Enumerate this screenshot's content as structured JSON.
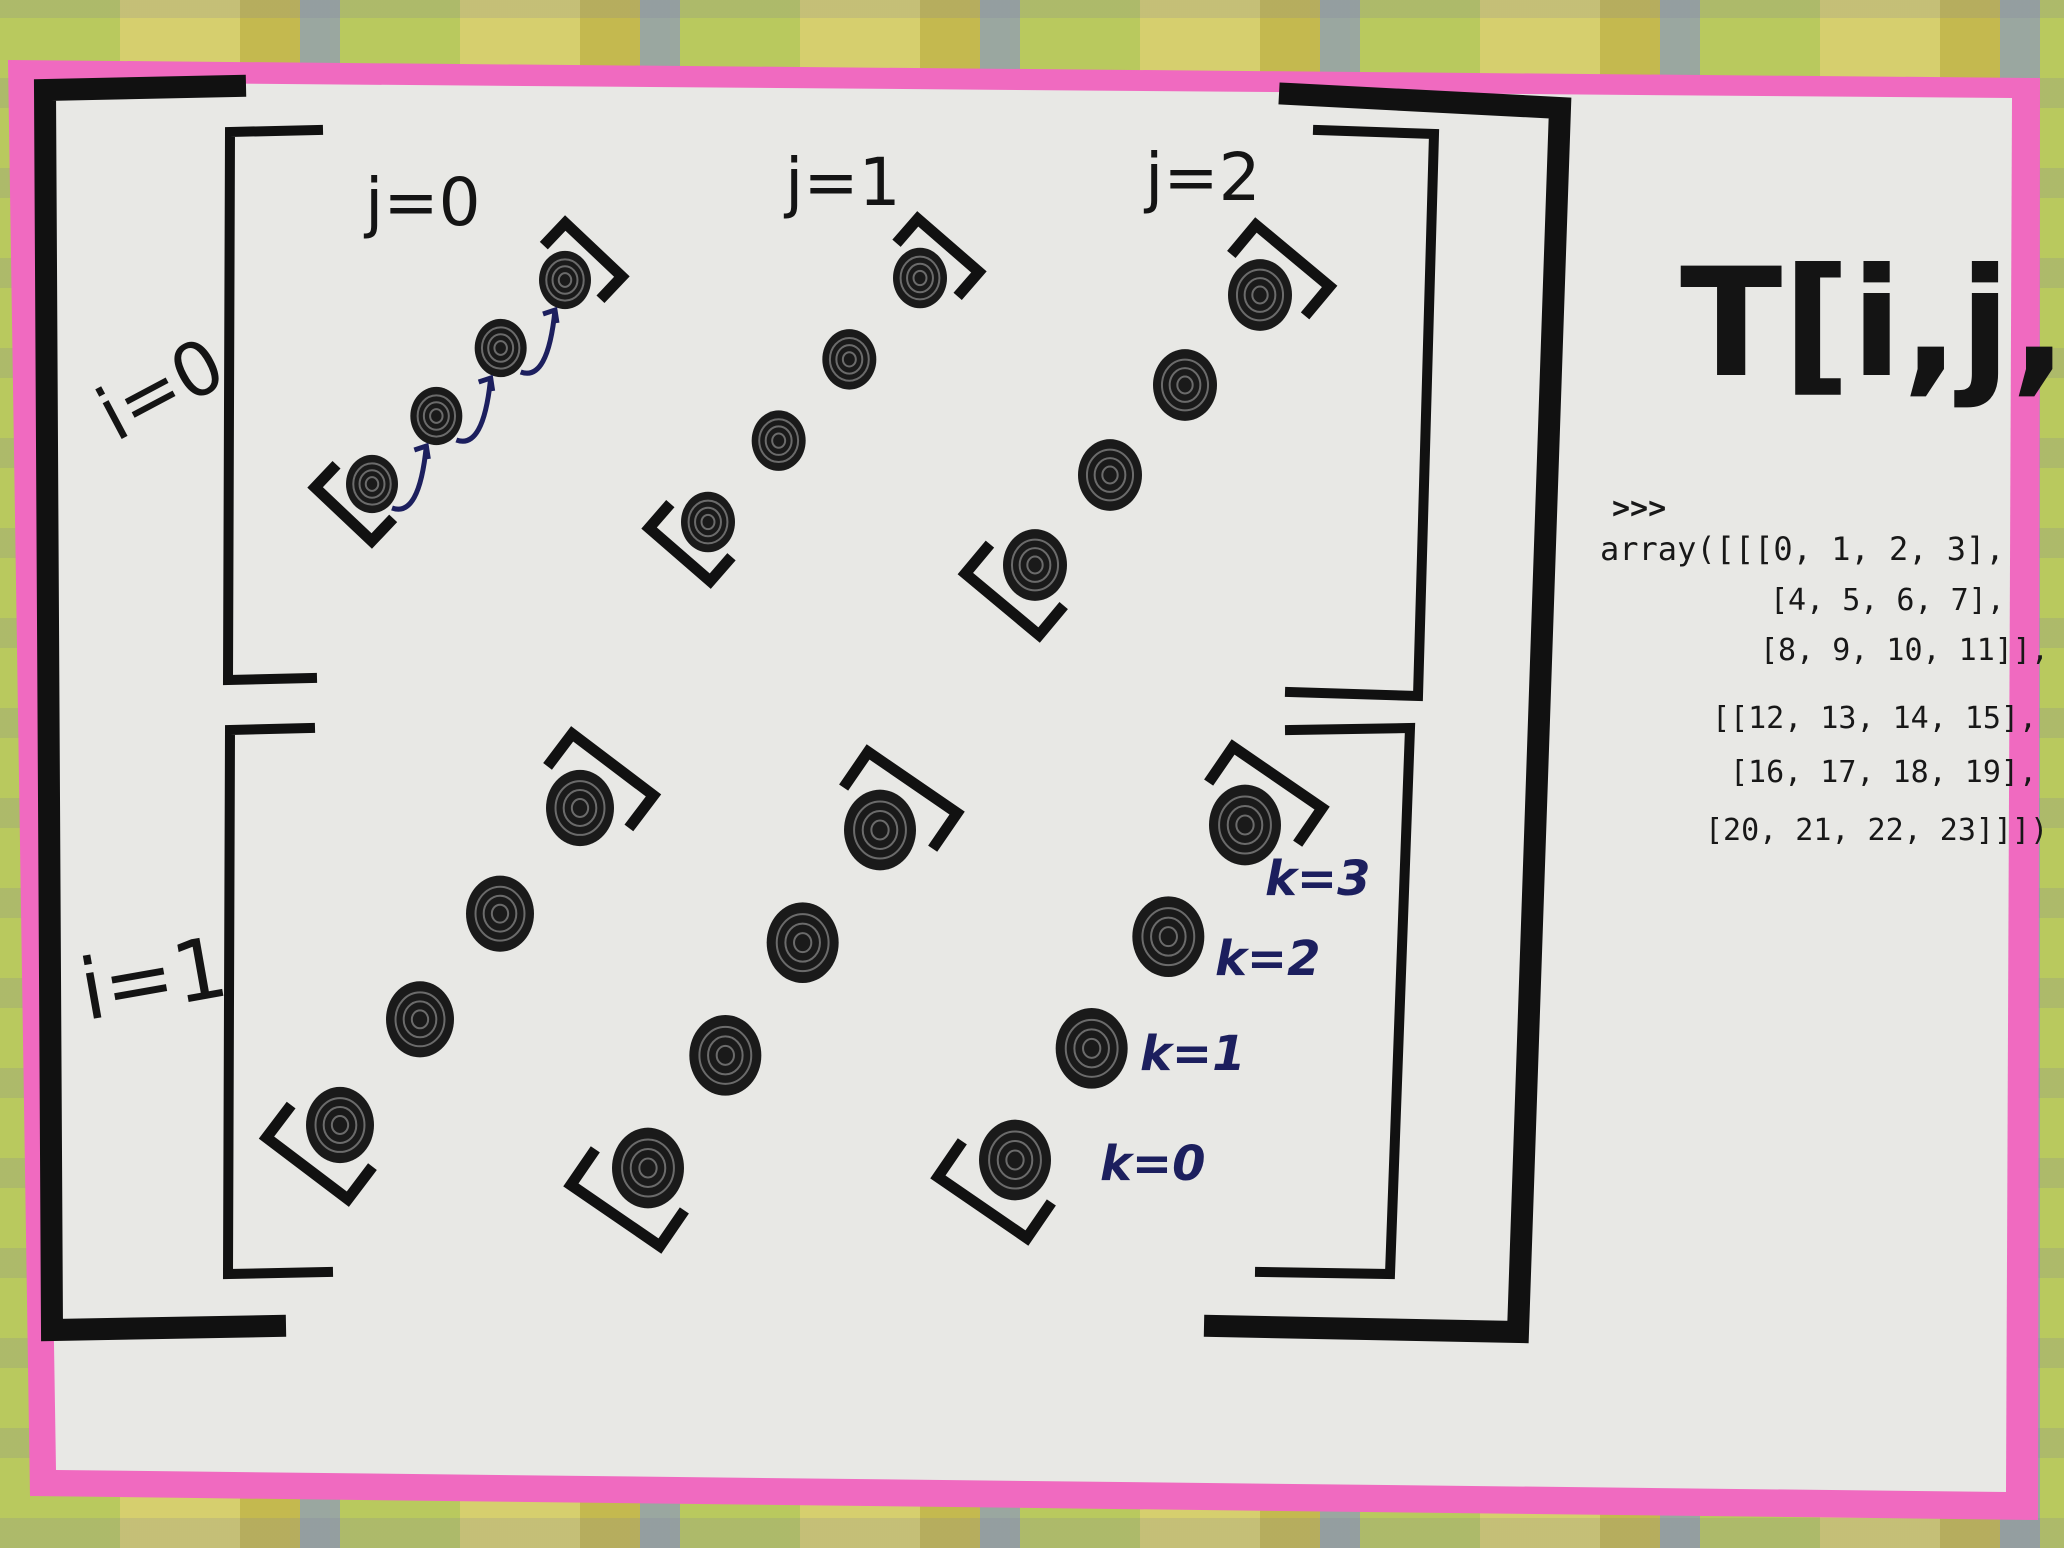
{
  "title": "T[i,j,k]",
  "axis_labels": {
    "i0": "i=0",
    "i1": "i=1",
    "j0": "j=0",
    "j1": "j=1",
    "j2": "j=2",
    "k0": "k=0",
    "k1": "k=1",
    "k2": "k=2",
    "k3": "k=3"
  },
  "code": {
    "prompt": ">>>",
    "lines": [
      "array([[[0, 1, 2, 3],",
      "[4, 5, 6, 7],",
      "[8, 9, 10, 11]],",
      "[[12, 13, 14, 15],",
      "[16, 17, 18, 19],",
      "[20, 21, 22, 23]]])"
    ]
  },
  "colors": {
    "poster": "#e9e9e6",
    "border": "#f06ac0",
    "ink": "#111111",
    "blue_ink": "#1c1f5e"
  }
}
